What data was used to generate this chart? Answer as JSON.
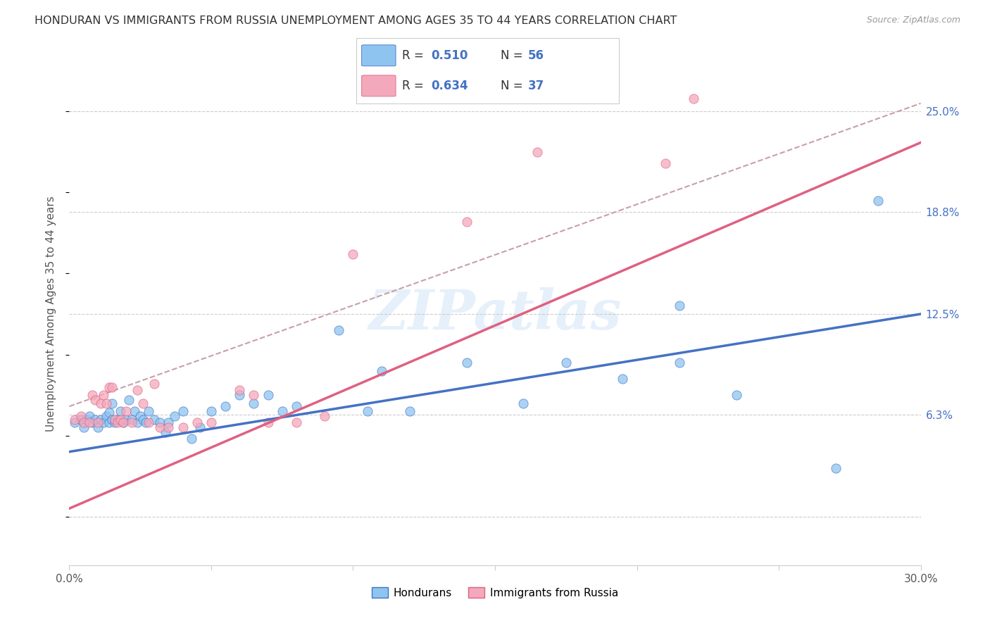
{
  "title": "HONDURAN VS IMMIGRANTS FROM RUSSIA UNEMPLOYMENT AMONG AGES 35 TO 44 YEARS CORRELATION CHART",
  "source": "Source: ZipAtlas.com",
  "ylabel": "Unemployment Among Ages 35 to 44 years",
  "xlim": [
    0.0,
    0.3
  ],
  "ylim": [
    -0.03,
    0.28
  ],
  "xticks": [
    0.0,
    0.05,
    0.1,
    0.15,
    0.2,
    0.25,
    0.3
  ],
  "xticklabels": [
    "0.0%",
    "",
    "",
    "",
    "",
    "",
    "30.0%"
  ],
  "ytick_positions": [
    0.0,
    0.063,
    0.125,
    0.188,
    0.25
  ],
  "ytick_labels": [
    "",
    "6.3%",
    "12.5%",
    "18.8%",
    "25.0%"
  ],
  "R_honduran": 0.51,
  "N_honduran": 56,
  "R_russia": 0.634,
  "N_russia": 37,
  "color_honduran": "#8EC4F0",
  "color_russia": "#F4A8BC",
  "color_line_honduran": "#4472C4",
  "color_line_russia": "#E06080",
  "color_dashed": "#C8A0A8",
  "watermark": "ZIPatlas",
  "line_honduran_x0": 0.0,
  "line_honduran_y0": 0.04,
  "line_honduran_x1": 0.3,
  "line_honduran_y1": 0.125,
  "line_russia_x0": 0.0,
  "line_russia_y0": 0.005,
  "line_russia_x1": 0.19,
  "line_russia_y1": 0.148,
  "line_dash_x0": 0.0,
  "line_dash_y0": 0.068,
  "line_dash_x1": 0.3,
  "line_dash_y1": 0.255,
  "honduran_x": [
    0.002,
    0.004,
    0.005,
    0.006,
    0.007,
    0.008,
    0.009,
    0.01,
    0.011,
    0.012,
    0.013,
    0.014,
    0.014,
    0.015,
    0.015,
    0.016,
    0.017,
    0.018,
    0.019,
    0.02,
    0.021,
    0.022,
    0.023,
    0.024,
    0.025,
    0.026,
    0.027,
    0.028,
    0.03,
    0.032,
    0.034,
    0.035,
    0.037,
    0.04,
    0.043,
    0.046,
    0.05,
    0.055,
    0.06,
    0.065,
    0.07,
    0.075,
    0.08,
    0.095,
    0.105,
    0.11,
    0.12,
    0.14,
    0.16,
    0.175,
    0.195,
    0.215,
    0.215,
    0.235,
    0.27,
    0.285
  ],
  "honduran_y": [
    0.058,
    0.06,
    0.055,
    0.06,
    0.062,
    0.058,
    0.06,
    0.055,
    0.06,
    0.058,
    0.062,
    0.058,
    0.064,
    0.06,
    0.07,
    0.058,
    0.06,
    0.065,
    0.058,
    0.06,
    0.072,
    0.06,
    0.065,
    0.058,
    0.062,
    0.06,
    0.058,
    0.065,
    0.06,
    0.058,
    0.052,
    0.058,
    0.062,
    0.065,
    0.048,
    0.055,
    0.065,
    0.068,
    0.075,
    0.07,
    0.075,
    0.065,
    0.068,
    0.115,
    0.065,
    0.09,
    0.065,
    0.095,
    0.07,
    0.095,
    0.085,
    0.095,
    0.13,
    0.075,
    0.03,
    0.195
  ],
  "russia_x": [
    0.002,
    0.004,
    0.005,
    0.007,
    0.008,
    0.009,
    0.01,
    0.011,
    0.012,
    0.013,
    0.014,
    0.015,
    0.016,
    0.017,
    0.018,
    0.019,
    0.02,
    0.022,
    0.024,
    0.026,
    0.028,
    0.03,
    0.032,
    0.035,
    0.04,
    0.045,
    0.05,
    0.06,
    0.065,
    0.07,
    0.08,
    0.09,
    0.1,
    0.14,
    0.165,
    0.21,
    0.22
  ],
  "russia_y": [
    0.06,
    0.062,
    0.058,
    0.058,
    0.075,
    0.072,
    0.058,
    0.07,
    0.075,
    0.07,
    0.08,
    0.08,
    0.06,
    0.058,
    0.06,
    0.058,
    0.065,
    0.058,
    0.078,
    0.07,
    0.058,
    0.082,
    0.055,
    0.055,
    0.055,
    0.058,
    0.058,
    0.078,
    0.075,
    0.058,
    0.058,
    0.062,
    0.162,
    0.182,
    0.225,
    0.218,
    0.258
  ]
}
